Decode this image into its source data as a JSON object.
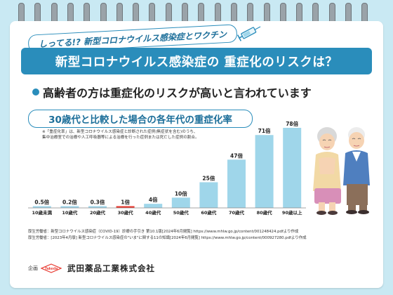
{
  "tag_text": "しってる!? 新型コロナウイルス感染症とワクチン",
  "banner_title": "新型コロナウイルス感染症の 重症化のリスクは？",
  "headline": "高齢者の方は重症化のリスクが高いと言われています",
  "chart_subtitle": "30歳代と比較した場合の各年代の重症化率",
  "note_line1": "※「重症化率」は、新型コロナウイルス感染症と診断された症例(無症状を含む)のうち、",
  "note_line2": "集中治療室での治療や人工呼吸器等による治療を行った症例または死亡した症例の割合。",
  "chart_data": {
    "type": "bar",
    "categories": [
      "10歳未満",
      "10歳代",
      "20歳代",
      "30歳代",
      "40歳代",
      "50歳代",
      "60歳代",
      "70歳代",
      "80歳代",
      "90歳以上"
    ],
    "values": [
      0.5,
      0.2,
      0.3,
      1,
      4,
      10,
      25,
      47,
      71,
      78
    ],
    "data_labels": [
      "0.5倍",
      "0.2倍",
      "0.3倍",
      "1倍",
      "4倍",
      "10倍",
      "25倍",
      "47倍",
      "71倍",
      "78倍"
    ],
    "title": "30歳代と比較した場合の各年代の重症化率",
    "ylim": [
      0,
      78
    ],
    "bar_color": "#9fd6ea",
    "highlight_index": 3,
    "highlight_color": "#e8382f",
    "grid": false
  },
  "ref1": "厚生労働省：新型コロナウイルス感染症（COVID-19）診療の手引き 第10.1版[2024年6月閲覧] https://www.mhlw.go.jp/content/001248424.pdfより作成",
  "ref2": "厚生労働省：[2023年4月版] 新型コロナウイルス感染症の\"いま\"に関する11の知識[2024年6月閲覧] https://www.mhlw.go.jp/content/000927280.pdfより作成",
  "footer_label": "企画",
  "logo_text": "Takeda",
  "company": "武田薬品工業株式会社",
  "colors": {
    "accent": "#2a8dbb",
    "background": "#c9e9f3"
  }
}
